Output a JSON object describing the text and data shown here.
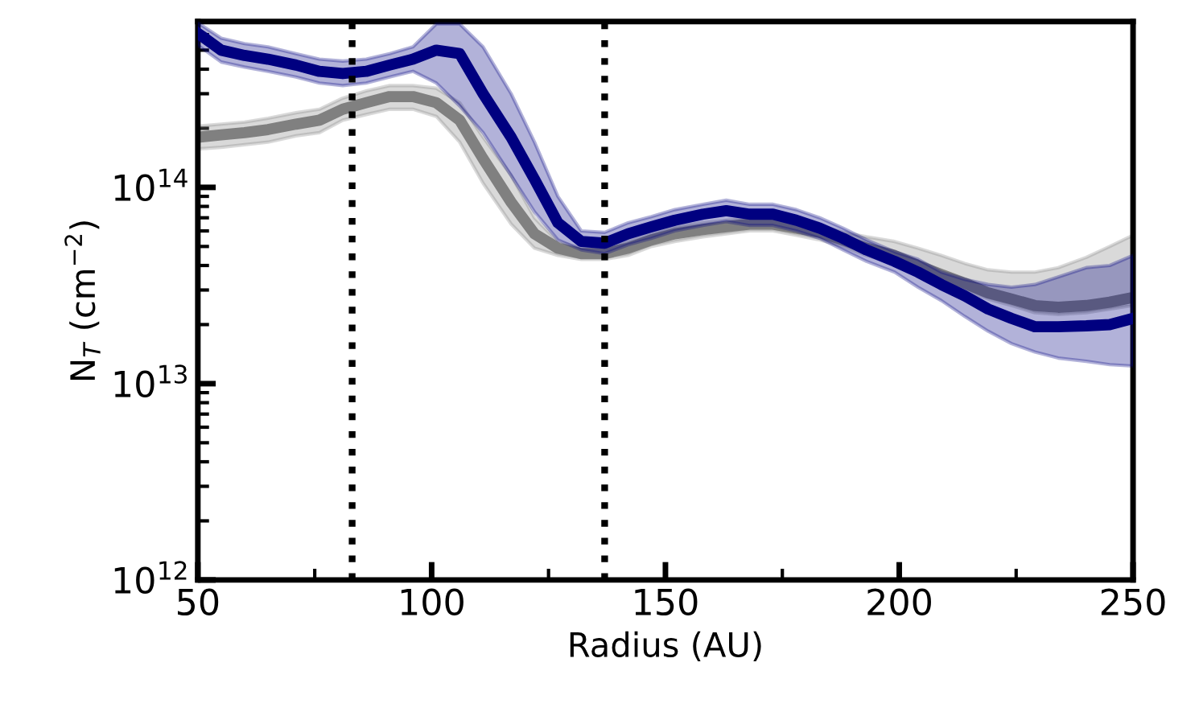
{
  "chart_data": {
    "type": "line",
    "xlabel": "Radius (AU)",
    "ylabel": "N$_{T}$ (cm$^{−2}$)",
    "x": [
      50,
      55,
      60,
      65,
      71,
      76,
      81,
      86,
      91,
      96,
      101,
      106,
      111,
      117,
      122,
      127,
      132,
      137,
      142,
      147,
      152,
      158,
      163,
      168,
      173,
      178,
      183,
      188,
      193,
      199,
      204,
      209,
      214,
      219,
      224,
      229,
      234,
      240,
      245,
      250
    ],
    "series": [
      {
        "color": "#808080",
        "values": [
          180000000000000.0,
          185000000000000.0,
          190000000000000.0,
          197000000000000.0,
          210000000000000.0,
          220000000000000.0,
          250000000000000.0,
          270000000000000.0,
          290000000000000.0,
          290000000000000.0,
          270000000000000.0,
          220000000000000.0,
          140000000000000.0,
          84000000000000.0,
          58000000000000.0,
          49000000000000.0,
          46000000000000.0,
          46000000000000.0,
          49000000000000.0,
          54000000000000.0,
          58000000000000.0,
          61000000000000.0,
          63000000000000.0,
          65000000000000.0,
          65000000000000.0,
          62000000000000.0,
          59000000000000.0,
          54000000000000.0,
          49000000000000.0,
          45000000000000.0,
          40000000000000.0,
          36000000000000.0,
          32500000000000.0,
          29000000000000.0,
          27000000000000.0,
          25000000000000.0,
          24500000000000.0,
          25000000000000.0,
          26000000000000.0,
          27500000000000.0
        ],
        "upper": [
          205000000000000.0,
          210000000000000.0,
          215000000000000.0,
          225000000000000.0,
          240000000000000.0,
          250000000000000.0,
          285000000000000.0,
          310000000000000.0,
          330000000000000.0,
          330000000000000.0,
          320000000000000.0,
          270000000000000.0,
          180000000000000.0,
          115000000000000.0,
          70000000000000.0,
          53000000000000.0,
          49000000000000.0,
          49000000000000.0,
          53000000000000.0,
          58000000000000.0,
          63000000000000.0,
          66000000000000.0,
          68000000000000.0,
          70000000000000.0,
          70000000000000.0,
          67000000000000.0,
          64000000000000.0,
          59000000000000.0,
          56000000000000.0,
          53000000000000.0,
          49000000000000.0,
          45000000000000.0,
          41000000000000.0,
          38000000000000.0,
          37000000000000.0,
          37000000000000.0,
          39000000000000.0,
          44000000000000.0,
          50000000000000.0,
          57000000000000.0
        ],
        "lower": [
          157000000000000.0,
          160000000000000.0,
          165000000000000.0,
          170000000000000.0,
          183000000000000.0,
          190000000000000.0,
          220000000000000.0,
          235000000000000.0,
          250000000000000.0,
          250000000000000.0,
          230000000000000.0,
          170000000000000.0,
          105000000000000.0,
          65000000000000.0,
          49000000000000.0,
          45000000000000.0,
          43000000000000.0,
          43000000000000.0,
          45000000000000.0,
          50000000000000.0,
          53000000000000.0,
          56000000000000.0,
          58000000000000.0,
          60000000000000.0,
          60000000000000.0,
          57000000000000.0,
          54000000000000.0,
          50000000000000.0,
          45000000000000.0,
          41000000000000.0,
          37000000000000.0,
          33000000000000.0,
          30000000000000.0,
          27000000000000.0,
          25000000000000.0,
          23000000000000.0,
          22500000000000.0,
          23000000000000.0,
          24000000000000.0,
          25000000000000.0
        ]
      },
      {
        "color": "#000080",
        "values": [
          610000000000000.0,
          500000000000000.0,
          470000000000000.0,
          450000000000000.0,
          420000000000000.0,
          390000000000000.0,
          380000000000000.0,
          390000000000000.0,
          420000000000000.0,
          450000000000000.0,
          500000000000000.0,
          480000000000000.0,
          300000000000000.0,
          180000000000000.0,
          110000000000000.0,
          66000000000000.0,
          53000000000000.0,
          52000000000000.0,
          58000000000000.0,
          63000000000000.0,
          68000000000000.0,
          73000000000000.0,
          76000000000000.0,
          73000000000000.0,
          73000000000000.0,
          68000000000000.0,
          62000000000000.0,
          55000000000000.0,
          48000000000000.0,
          42000000000000.0,
          37000000000000.0,
          32000000000000.0,
          28000000000000.0,
          24000000000000.0,
          21500000000000.0,
          19500000000000.0,
          19500000000000.0,
          19700000000000.0,
          20000000000000.0,
          21500000000000.0
        ],
        "upper": [
          690000000000000.0,
          575000000000000.0,
          540000000000000.0,
          520000000000000.0,
          480000000000000.0,
          450000000000000.0,
          440000000000000.0,
          450000000000000.0,
          480000000000000.0,
          520000000000000.0,
          680000000000000.0,
          680000000000000.0,
          520000000000000.0,
          300000000000000.0,
          170000000000000.0,
          90000000000000.0,
          60000000000000.0,
          59000000000000.0,
          66000000000000.0,
          71000000000000.0,
          77000000000000.0,
          82000000000000.0,
          86000000000000.0,
          82000000000000.0,
          82000000000000.0,
          77000000000000.0,
          70000000000000.0,
          62000000000000.0,
          54000000000000.0,
          47000000000000.0,
          43000000000000.0,
          37000000000000.0,
          34000000000000.0,
          32000000000000.0,
          31000000000000.0,
          32000000000000.0,
          35000000000000.0,
          39000000000000.0,
          40000000000000.0,
          45000000000000.0
        ],
        "lower": [
          530000000000000.0,
          435000000000000.0,
          410000000000000.0,
          390000000000000.0,
          365000000000000.0,
          340000000000000.0,
          330000000000000.0,
          340000000000000.0,
          365000000000000.0,
          390000000000000.0,
          340000000000000.0,
          260000000000000.0,
          190000000000000.0,
          115000000000000.0,
          75000000000000.0,
          54000000000000.0,
          48000000000000.0,
          46000000000000.0,
          51000000000000.0,
          55000000000000.0,
          60000000000000.0,
          64000000000000.0,
          67000000000000.0,
          64000000000000.0,
          64000000000000.0,
          60000000000000.0,
          55000000000000.0,
          48000000000000.0,
          42000000000000.0,
          37000000000000.0,
          31000000000000.0,
          26500000000000.0,
          22000000000000.0,
          18500000000000.0,
          16000000000000.0,
          14500000000000.0,
          13500000000000.0,
          13000000000000.0,
          12500000000000.0,
          12300000000000.0
        ]
      }
    ],
    "xlim": [
      50,
      250
    ],
    "xticks": [
      50,
      100,
      150,
      200,
      250
    ],
    "log": "y",
    "ylim": [
      1000000000000.0,
      700000000000000.0
    ],
    "yticks": [
      {
        "value": 1000000000000.0,
        "label": "10$^{12}$"
      },
      {
        "value": 10000000000000.0,
        "label": "10$^{13}$"
      },
      {
        "value": 100000000000000.0,
        "label": "10$^{14}$"
      }
    ],
    "ref_lines": [
      {
        "axis": "x",
        "value": 83,
        "color": "#000000",
        "line_style": "dotted"
      },
      {
        "axis": "x",
        "value": 137,
        "color": "#000000",
        "line_style": "dotted"
      }
    ],
    "grid": false,
    "legend": false
  }
}
